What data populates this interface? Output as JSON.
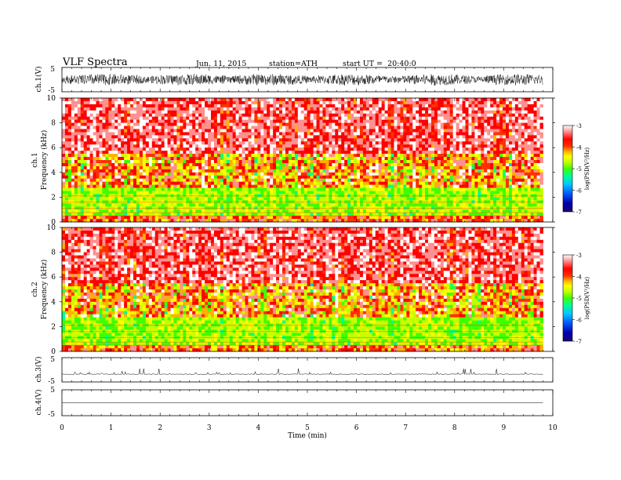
{
  "header": {
    "title": "VLF Spectra",
    "date": "Jun. 11, 2015",
    "station": "station=ATH",
    "start": "start UT =  20:40:0"
  },
  "colors": {
    "colormap": [
      "#1a0070",
      "#0000b0",
      "#0060ff",
      "#00c8ff",
      "#00ff90",
      "#40ff00",
      "#c8ff00",
      "#ffff00",
      "#ffb000",
      "#ff3000",
      "#ff0000",
      "#ff9090",
      "#ffffff"
    ]
  },
  "chart_data": [
    {
      "id": "ch1-waveform",
      "type": "line",
      "ylabel": "ch.1(V)",
      "ylim": [
        -5,
        5
      ],
      "yticks": [
        "5",
        "-5"
      ],
      "xlim": [
        0,
        10
      ],
      "description_values": {
        "amplitude_range_V": [
          -2.2,
          2.2
        ],
        "end_time_min": 9.8
      }
    },
    {
      "id": "ch1-spectrogram",
      "type": "heatmap",
      "ylabel": "ch.1\nFrequency (kHz)",
      "ylabel_lines": [
        "ch.1",
        "Frequency (kHz)"
      ],
      "ylim": [
        0,
        10
      ],
      "yticks": [
        "10",
        "8",
        "6",
        "4",
        "2",
        "0"
      ],
      "xlim": [
        0,
        10
      ],
      "data_end_min": 9.8,
      "colorbar": {
        "label": "log(PSD(V²/Hz)",
        "range": [
          -7,
          -3
        ],
        "ticks": [
          "-3",
          "-4",
          "-5",
          "-6",
          "-7"
        ]
      }
    },
    {
      "id": "ch2-spectrogram",
      "type": "heatmap",
      "ylabel_lines": [
        "ch.2",
        "Frequency (kHz)"
      ],
      "ylim": [
        0,
        10
      ],
      "yticks": [
        "10",
        "8",
        "6",
        "4",
        "2",
        "0"
      ],
      "xlim": [
        0,
        10
      ],
      "data_end_min": 9.8,
      "colorbar": {
        "label": "log(PSD(V²/Hz)",
        "range": [
          -7,
          -3
        ],
        "ticks": [
          "-3",
          "-4",
          "-5",
          "-6",
          "-7"
        ]
      }
    },
    {
      "id": "ch3-waveform",
      "type": "line",
      "ylabel": "ch.3(V)",
      "ylim": [
        -5,
        5
      ],
      "yticks": [
        "5",
        "-5"
      ],
      "xlim": [
        0,
        10
      ]
    },
    {
      "id": "ch4-waveform",
      "type": "line",
      "ylabel": "ch.4(V)",
      "ylim": [
        -5,
        5
      ],
      "yticks": [
        "5",
        "-5"
      ],
      "xlim": [
        0,
        10
      ],
      "constant_value_V": 0
    },
    {
      "id": "time-axis",
      "type": "table",
      "xlabel": "Time  (min)",
      "xticks": [
        "0",
        "1",
        "2",
        "3",
        "4",
        "5",
        "6",
        "7",
        "8",
        "9",
        "10"
      ]
    }
  ]
}
